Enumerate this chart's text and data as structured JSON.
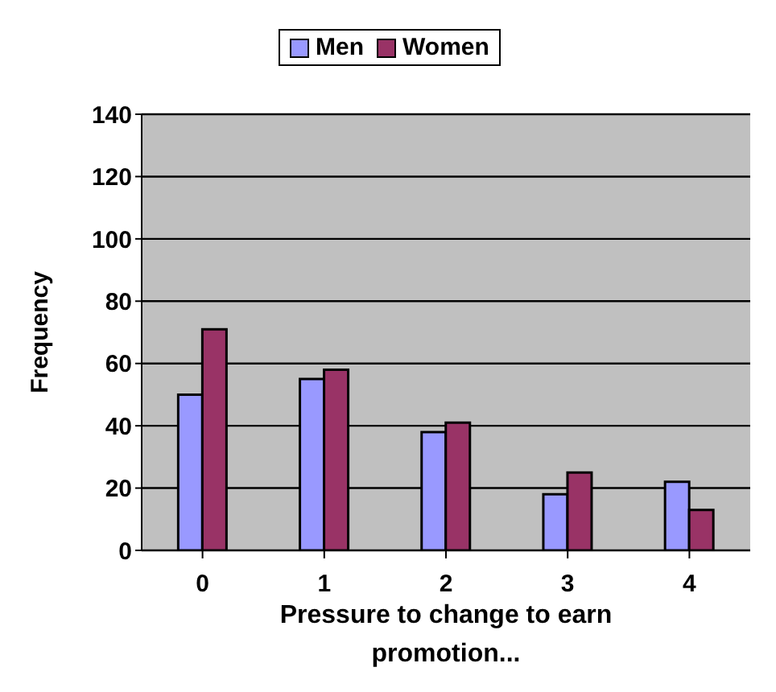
{
  "chart_data": {
    "type": "bar",
    "categories": [
      "0",
      "1",
      "2",
      "3",
      "4"
    ],
    "series": [
      {
        "name": "Men",
        "color": "#9999ff",
        "values": [
          50,
          55,
          38,
          18,
          22
        ]
      },
      {
        "name": "Women",
        "color": "#993366",
        "values": [
          71,
          58,
          41,
          25,
          13
        ]
      }
    ],
    "xlabel": "Pressure to change to earn promotion...",
    "ylabel": "Frequency",
    "ylim": [
      0,
      140
    ],
    "yticks": [
      0,
      20,
      40,
      60,
      80,
      100,
      120,
      140
    ],
    "grid": "y",
    "legend": "top"
  }
}
